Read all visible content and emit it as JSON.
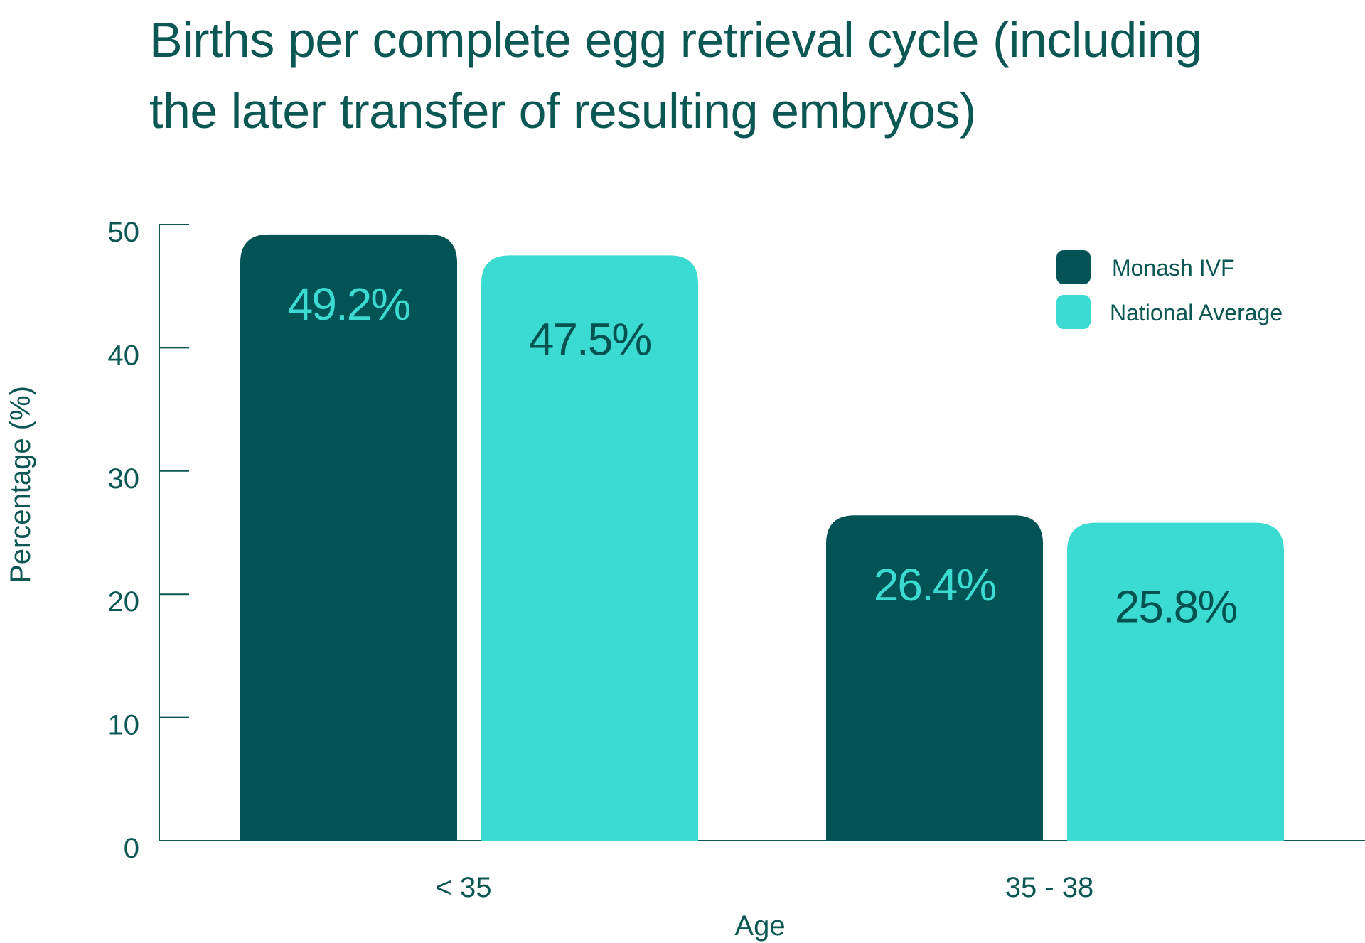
{
  "chart_data": {
    "type": "bar",
    "title_lines": [
      "Births per complete egg retrieval cycle (including",
      "the later transfer of resulting embryos)"
    ],
    "xlabel": "Age",
    "ylabel": "Percentage (%)",
    "categories": [
      "< 35",
      "35 - 38"
    ],
    "ylim": [
      0,
      50
    ],
    "yticks": [
      0,
      10,
      20,
      30,
      40,
      50
    ],
    "grid": false,
    "legend_position": "top-right",
    "series": [
      {
        "name": "Monash IVF",
        "color": "#015355",
        "label_color": "#3cdbd2",
        "values": [
          49.2,
          26.4
        ],
        "labels": [
          "49.2%",
          "26.4%"
        ]
      },
      {
        "name": "National Average",
        "color": "#3cdbd2",
        "label_color": "#025252",
        "values": [
          47.5,
          25.8
        ],
        "labels": [
          "47.5%",
          "25.8%"
        ]
      }
    ]
  }
}
